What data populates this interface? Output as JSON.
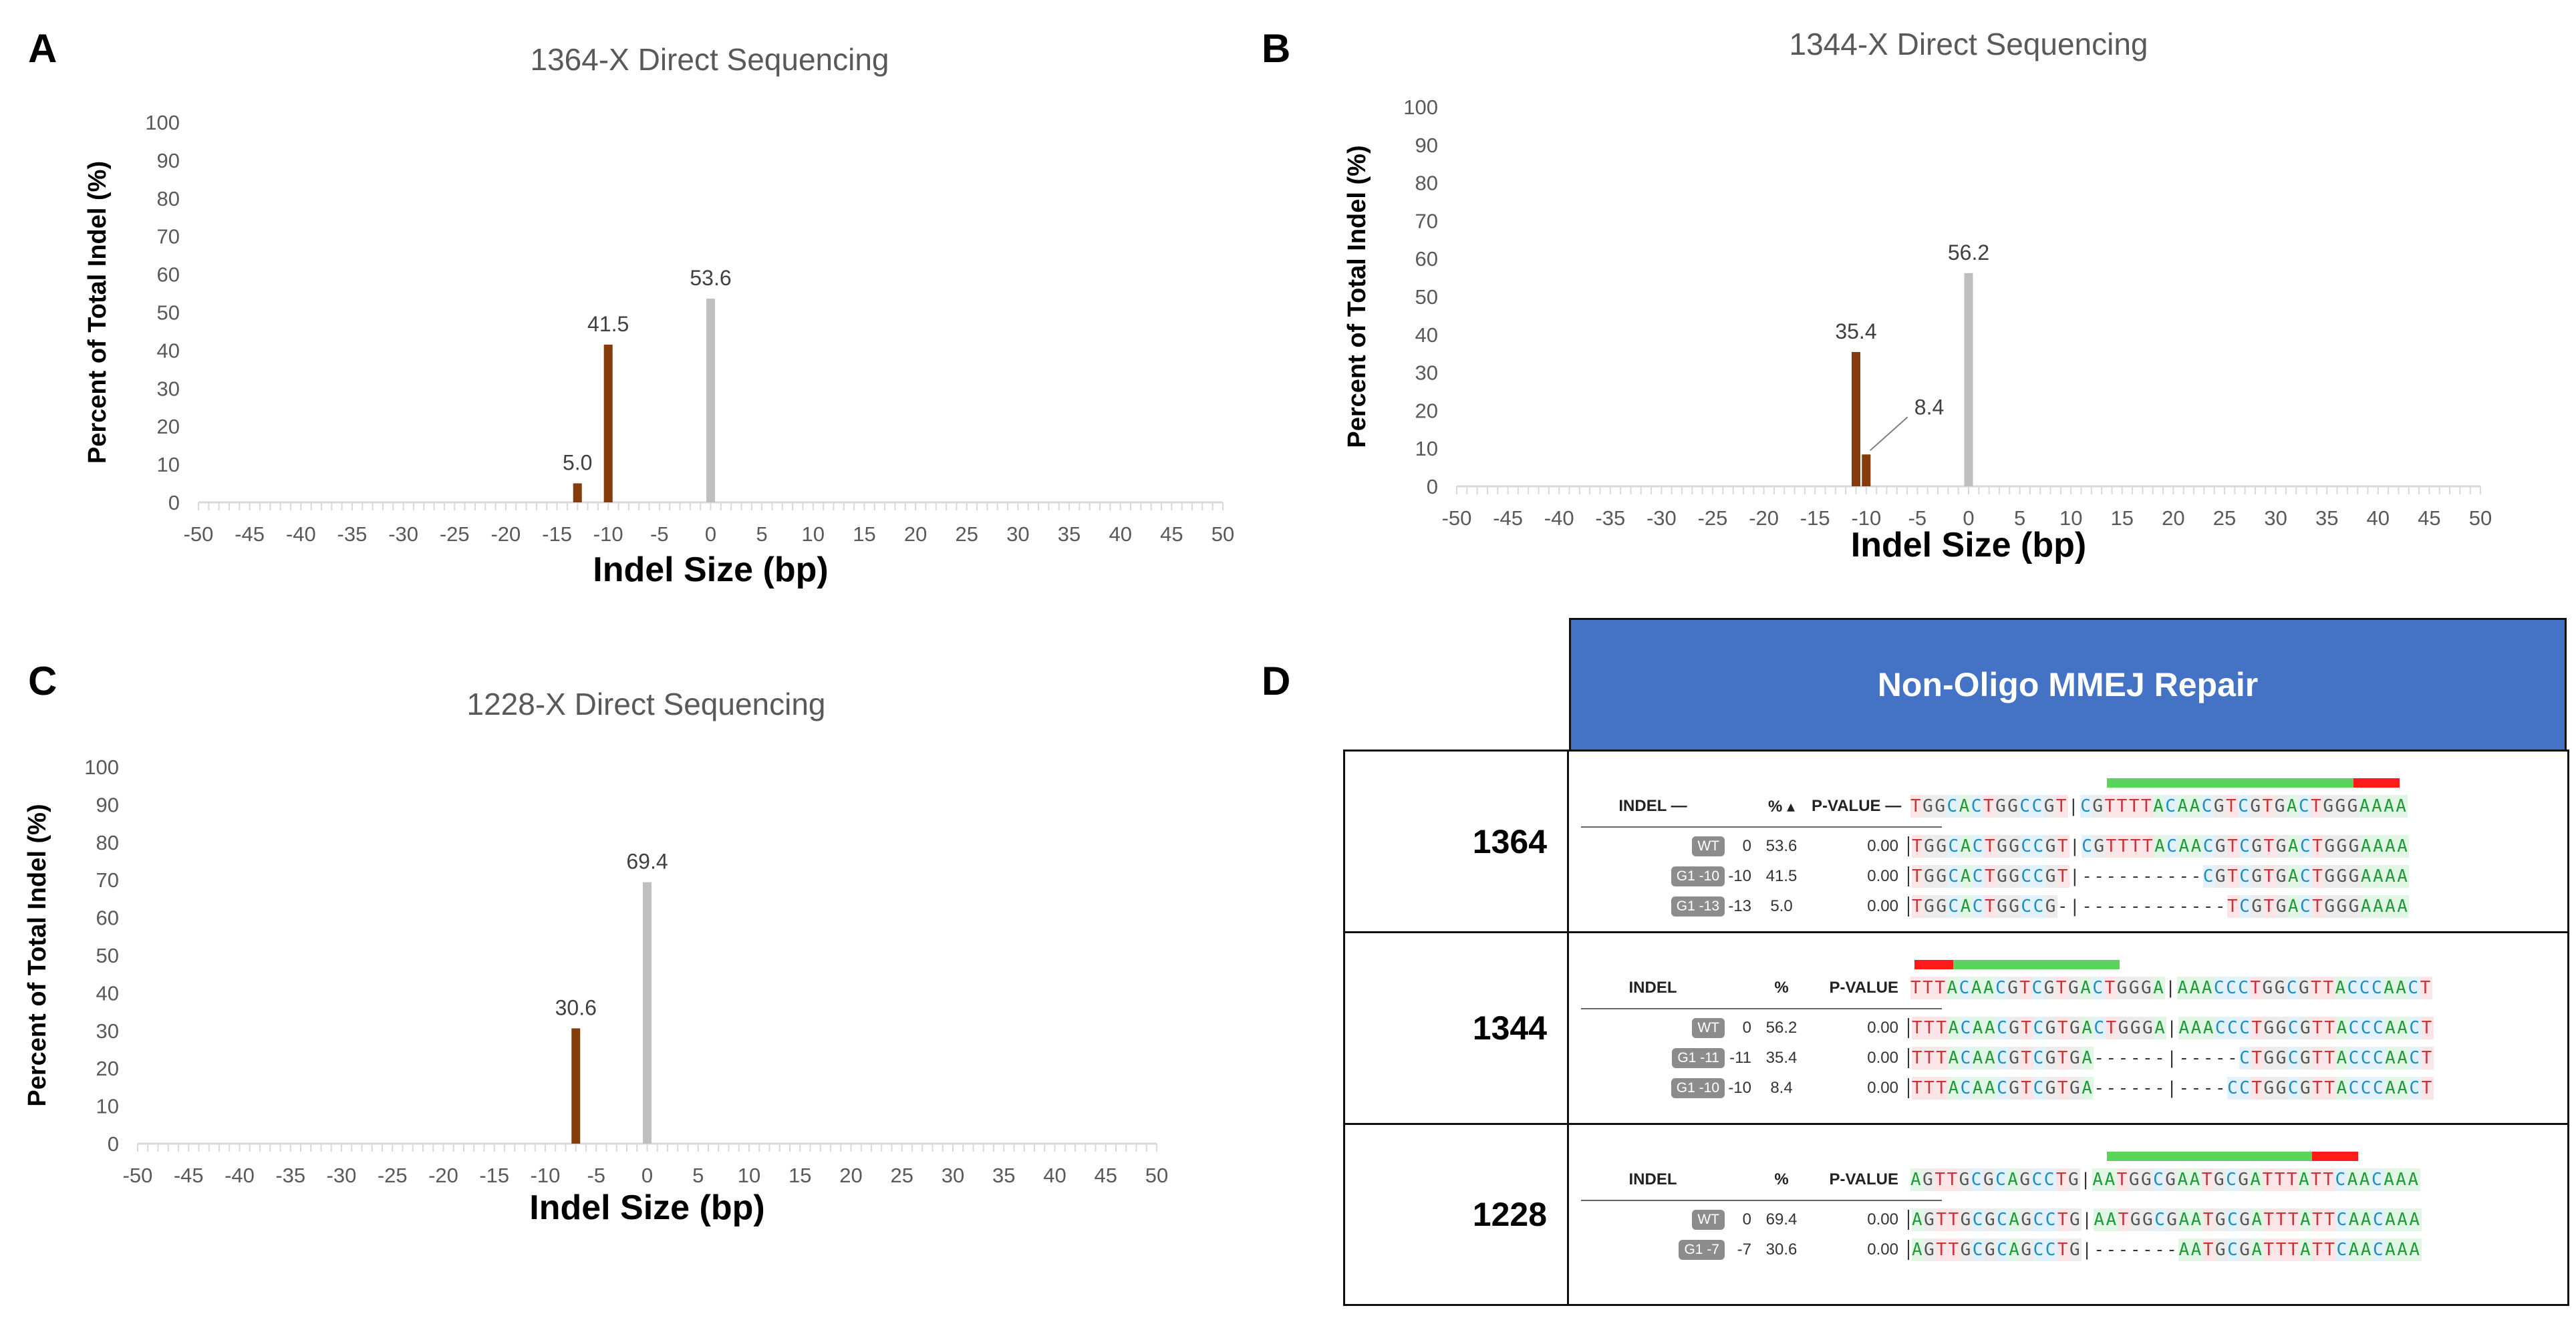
{
  "chart_data": [
    {
      "panel": "A",
      "type": "bar",
      "title": "1364-X Direct Sequencing",
      "xlabel": "Indel Size (bp)",
      "ylabel": "Percent of Total Indel (%)",
      "xlim": [
        -50,
        50
      ],
      "ylim": [
        0,
        100
      ],
      "x_ticks": [
        -50,
        -45,
        -40,
        -35,
        -30,
        -25,
        -20,
        -15,
        -10,
        -5,
        0,
        5,
        10,
        15,
        20,
        25,
        30,
        35,
        40,
        45,
        50
      ],
      "y_ticks": [
        0,
        10,
        20,
        30,
        40,
        50,
        60,
        70,
        80,
        90,
        100
      ],
      "bars": [
        {
          "x": -13,
          "value": 5.0,
          "label": "5.0",
          "color": "#843c0c"
        },
        {
          "x": -10,
          "value": 41.5,
          "label": "41.5",
          "color": "#843c0c"
        },
        {
          "x": 0,
          "value": 53.6,
          "label": "53.6",
          "color": "#bfbfbf"
        }
      ]
    },
    {
      "panel": "B",
      "type": "bar",
      "title": "1344-X Direct Sequencing",
      "xlabel": "Indel Size (bp)",
      "ylabel": "Percent of Total Indel (%)",
      "xlim": [
        -50,
        50
      ],
      "ylim": [
        0,
        100
      ],
      "x_ticks": [
        -50,
        -45,
        -40,
        -35,
        -30,
        -25,
        -20,
        -15,
        -10,
        -5,
        0,
        5,
        10,
        15,
        20,
        25,
        30,
        35,
        40,
        45,
        50
      ],
      "y_ticks": [
        0,
        10,
        20,
        30,
        40,
        50,
        60,
        70,
        80,
        90,
        100
      ],
      "bars": [
        {
          "x": -11,
          "value": 35.4,
          "label": "35.4",
          "color": "#843c0c"
        },
        {
          "x": -10,
          "value": 8.4,
          "label": "8.4",
          "color": "#843c0c",
          "leader": true
        },
        {
          "x": 0,
          "value": 56.2,
          "label": "56.2",
          "color": "#bfbfbf"
        }
      ]
    },
    {
      "panel": "C",
      "type": "bar",
      "title": "1228-X Direct Sequencing",
      "xlabel": "Indel Size (bp)",
      "ylabel": "Percent of Total Indel (%)",
      "xlim": [
        -50,
        50
      ],
      "ylim": [
        0,
        100
      ],
      "x_ticks": [
        -50,
        -45,
        -40,
        -35,
        -30,
        -25,
        -20,
        -15,
        -10,
        -5,
        0,
        5,
        10,
        15,
        20,
        25,
        30,
        35,
        40,
        45,
        50
      ],
      "y_ticks": [
        0,
        10,
        20,
        30,
        40,
        50,
        60,
        70,
        80,
        90,
        100
      ],
      "bars": [
        {
          "x": -7,
          "value": 30.6,
          "label": "30.6",
          "color": "#843c0c"
        },
        {
          "x": 0,
          "value": 69.4,
          "label": "69.4",
          "color": "#bfbfbf"
        }
      ]
    }
  ],
  "panel_d": {
    "letter": "D",
    "header": "Non-Oligo MMEJ Repair",
    "rows": [
      {
        "sample": "1364",
        "headers": {
          "indel": "INDEL —",
          "pct": "% ▴",
          "pvalue": "P-VALUE —"
        },
        "ref": "TGGCACTGGCCGT|CGTTTTACAACGTCGTGACTGGGAAAA",
        "entries": [
          {
            "tag": "WT",
            "len": "0",
            "pct": "53.6",
            "pvalue": "0.00",
            "seq": "TGGCACTGGCCGT|CGTTTTACAACGTCGTGACTGGGAAAA"
          },
          {
            "tag": "G1 -10",
            "len": "-10",
            "pct": "41.5",
            "pvalue": "0.00",
            "seq": "TGGCACTGGCCGT|----------CGTCGTGACTGGGAAAA"
          },
          {
            "tag": "G1 -13",
            "len": "-13",
            "pct": "5.0",
            "pvalue": "0.00",
            "seq": "TGGCACTGGCCG-|------------TCGTGACTGGGAAAA"
          }
        ]
      },
      {
        "sample": "1344",
        "headers": {
          "indel": "INDEL",
          "pct": "%",
          "pvalue": "P-VALUE"
        },
        "ref": "TTTACAACGTCGTGACTGGGA|AAACCCTGGCGTTACCCAACT",
        "entries": [
          {
            "tag": "WT",
            "len": "0",
            "pct": "56.2",
            "pvalue": "0.00",
            "seq": "TTTACAACGTCGTGACTGGGA|AAACCCTGGCGTTACCCAACT"
          },
          {
            "tag": "G1 -11",
            "len": "-11",
            "pct": "35.4",
            "pvalue": "0.00",
            "seq": "TTTACAACGTCGTGA------|-----CTGGCGTTACCCAACT"
          },
          {
            "tag": "G1 -10",
            "len": "-10",
            "pct": "8.4",
            "pvalue": "0.00",
            "seq": "TTTACAACGTCGTGA------|----CCTGGCGTTACCCAACT"
          }
        ]
      },
      {
        "sample": "1228",
        "headers": {
          "indel": "INDEL",
          "pct": "%",
          "pvalue": "P-VALUE"
        },
        "ref": "AGTTGCGCAGCCTG|AATGGCGAATGCGATTTATTCAACAAA",
        "entries": [
          {
            "tag": "WT",
            "len": "0",
            "pct": "69.4",
            "pvalue": "0.00",
            "seq": "AGTTGCGCAGCCTG|AATGGCGAATGCGATTTATTCAACAAA"
          },
          {
            "tag": "G1 -7",
            "len": "-7",
            "pct": "30.6",
            "pvalue": "0.00",
            "seq": "AGTTGCGCAGCCTG|-------AATGCGATTTATTCAACAAA"
          }
        ]
      }
    ]
  },
  "colors": {
    "edited": "#843c0c",
    "wildtype": "#bfbfbf",
    "header_bg": "#4472c4",
    "guide_green": "#5ad45a",
    "pam_red": "#ff1a1a"
  }
}
